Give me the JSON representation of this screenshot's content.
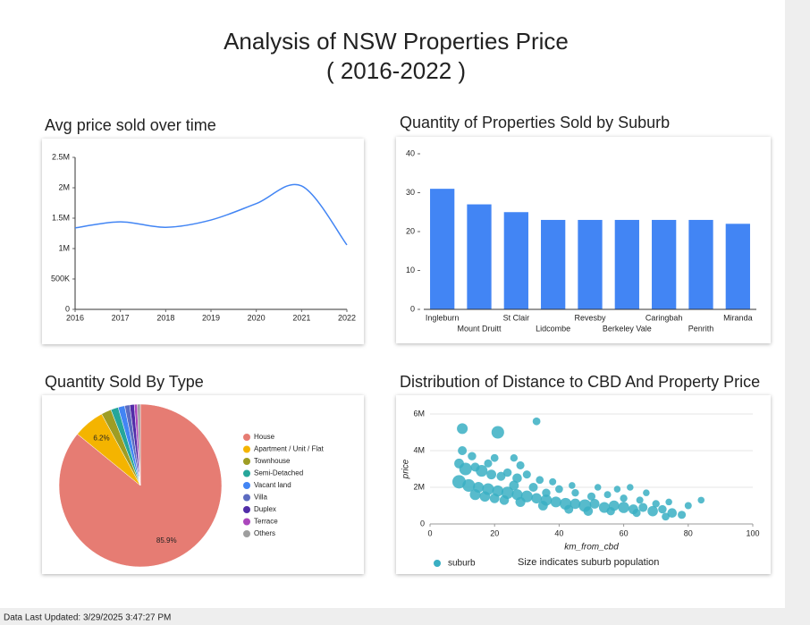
{
  "header": {
    "title": "Analysis of NSW Properties Price",
    "subtitle": "( 2016-2022 )"
  },
  "footer": "Data Last Updated: 3/29/2025 3:47:27 PM",
  "chart_data": [
    {
      "type": "line",
      "title": "Avg price sold over time",
      "color": "#4285f4",
      "x": [
        2016,
        2017,
        2018,
        2019,
        2020,
        2021,
        2022
      ],
      "values": [
        1340000,
        1440000,
        1350000,
        1470000,
        1740000,
        2030000,
        1060000
      ],
      "xlim": [
        2016,
        2022
      ],
      "xticks": [
        2016,
        2017,
        2018,
        2019,
        2020,
        2021,
        2022
      ],
      "ylim": [
        0,
        2500000
      ],
      "yticks": [
        0,
        {
          "value": 500000,
          "label": "500K"
        },
        {
          "value": 1000000,
          "label": "1M"
        },
        {
          "value": 1500000,
          "label": "1.5M"
        },
        {
          "value": 2000000,
          "label": "2M"
        },
        {
          "value": 2500000,
          "label": "2.5M"
        }
      ],
      "grid": false
    },
    {
      "type": "bar",
      "title": "Quantity of Properties Sold by Suburb",
      "color": "#4285f4",
      "categories": [
        "Ingleburn",
        "Mount Druitt",
        "St Clair",
        "Lidcombe",
        "Revesby",
        "Berkeley Vale",
        "Caringbah",
        "Penrith",
        "Miranda"
      ],
      "values": [
        31,
        27,
        25,
        23,
        23,
        23,
        23,
        23,
        22
      ],
      "ylim": [
        0,
        40
      ],
      "yticks": [
        0,
        10,
        20,
        30,
        40
      ],
      "grid": false
    },
    {
      "type": "pie",
      "title": "Quantity Sold By Type",
      "categories": [
        "House",
        "Apartment / Unit / Flat",
        "Townhouse",
        "Semi-Detached",
        "Vacant land",
        "Villa",
        "Duplex",
        "Terrace",
        "Others"
      ],
      "values": [
        85.9,
        6.2,
        2.0,
        1.5,
        1.3,
        1.0,
        0.9,
        0.6,
        0.6
      ],
      "value_labels": [
        "85.9%",
        "6.2%",
        null,
        null,
        null,
        null,
        null,
        null,
        null
      ],
      "colors": [
        "#e67c73",
        "#f4b400",
        "#9e9d24",
        "#26a69a",
        "#4285f4",
        "#5c6bc0",
        "#512da8",
        "#ab47bc",
        "#9e9e9e"
      ],
      "legend": "right"
    },
    {
      "type": "scatter",
      "title": "Distribution of Distance to CBD And Property Price",
      "xlabel": "km_from_cbd",
      "ylabel": "price",
      "annotation": "Size indicates suburb population",
      "xlim": [
        0,
        100
      ],
      "xticks": [
        0,
        20,
        40,
        60,
        80,
        100
      ],
      "ylim": [
        0,
        6000000
      ],
      "yticks": [
        0,
        {
          "value": 2000000,
          "label": "2M"
        },
        {
          "value": 4000000,
          "label": "4M"
        },
        {
          "value": 6000000,
          "label": "6M"
        }
      ],
      "grid": true,
      "legend": "bottom-left",
      "series": [
        {
          "name": "suburb",
          "color": "#3aafc3",
          "x": [
            10,
            21,
            33,
            10,
            13,
            9,
            11,
            14,
            18,
            20,
            26,
            28,
            16,
            19,
            22,
            24,
            27,
            30,
            34,
            9,
            12,
            15,
            18,
            21,
            24,
            27,
            30,
            33,
            36,
            39,
            42,
            45,
            48,
            51,
            54,
            57,
            60,
            63,
            66,
            69,
            72,
            75,
            78,
            80,
            84,
            40,
            45,
            50,
            55,
            60,
            65,
            70,
            38,
            44,
            52,
            58,
            62,
            32,
            36,
            26,
            14,
            17,
            20,
            23,
            28,
            35,
            43,
            49,
            56,
            64,
            73,
            67,
            74
          ],
          "values": [
            5200000,
            5000000,
            5600000,
            4000000,
            3700000,
            3300000,
            3000000,
            3100000,
            3300000,
            3600000,
            3600000,
            3200000,
            2900000,
            2700000,
            2600000,
            2800000,
            2500000,
            2700000,
            2400000,
            2300000,
            2100000,
            2000000,
            1900000,
            1800000,
            1700000,
            1600000,
            1500000,
            1400000,
            1300000,
            1200000,
            1100000,
            1100000,
            1000000,
            1100000,
            900000,
            1000000,
            900000,
            800000,
            900000,
            700000,
            800000,
            600000,
            500000,
            1000000,
            1300000,
            1900000,
            1700000,
            1500000,
            1600000,
            1400000,
            1300000,
            1100000,
            2300000,
            2100000,
            2000000,
            1900000,
            2000000,
            2000000,
            1700000,
            2100000,
            1600000,
            1500000,
            1400000,
            1300000,
            1200000,
            1000000,
            800000,
            700000,
            700000,
            600000,
            400000,
            1700000,
            1200000
          ],
          "sizes": [
            20000,
            30000,
            8000,
            12000,
            10000,
            15000,
            30000,
            12000,
            9000,
            8000,
            7000,
            9000,
            25000,
            15000,
            12000,
            10000,
            14000,
            9000,
            8000,
            35000,
            30000,
            20000,
            25000,
            22000,
            28000,
            20000,
            25000,
            18000,
            22000,
            20000,
            25000,
            18000,
            30000,
            15000,
            20000,
            18000,
            22000,
            15000,
            12000,
            18000,
            10000,
            14000,
            9000,
            6000,
            5000,
            8000,
            7000,
            9000,
            6000,
            7000,
            6000,
            7000,
            6000,
            5000,
            5000,
            5000,
            5000,
            12000,
            10000,
            15000,
            20000,
            18000,
            15000,
            14000,
            16000,
            15000,
            12000,
            14000,
            10000,
            9000,
            8000,
            5000,
            5000
          ]
        }
      ]
    }
  ]
}
